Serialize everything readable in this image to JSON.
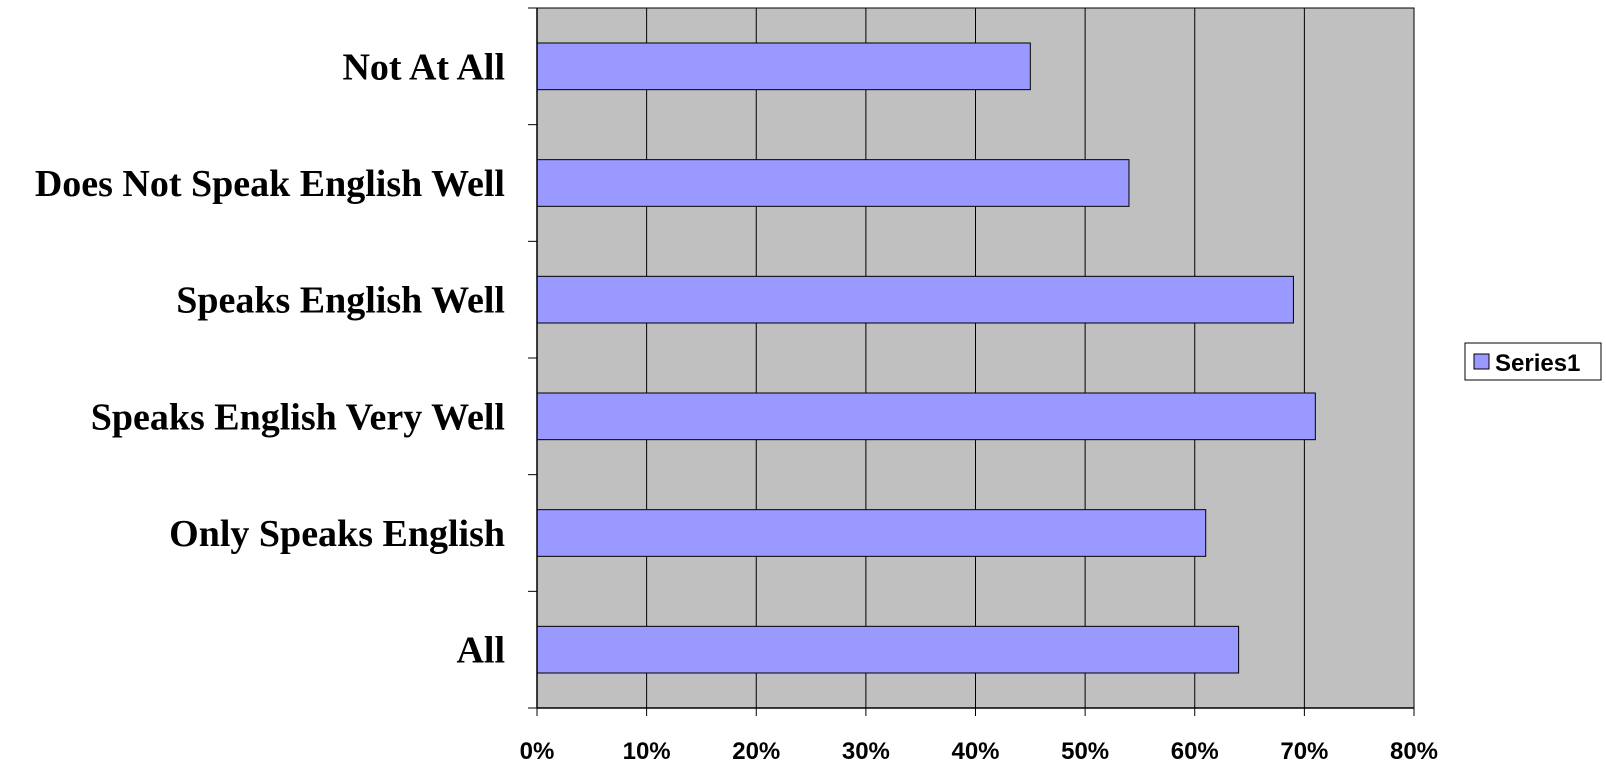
{
  "chart_data": {
    "type": "bar",
    "orientation": "horizontal",
    "categories": [
      "Not At All",
      "Does Not Speak English Well",
      "Speaks English Well",
      "Speaks English Very Well",
      "Only Speaks English",
      "All"
    ],
    "series": [
      {
        "name": "Series1",
        "values": [
          45,
          54,
          69,
          71,
          61,
          64
        ]
      }
    ],
    "xlim": [
      0,
      80
    ],
    "xticks": [
      0,
      10,
      20,
      30,
      40,
      50,
      60,
      70,
      80
    ],
    "tick_labels": [
      "0%",
      "10%",
      "20%",
      "30%",
      "40%",
      "50%",
      "60%",
      "70%",
      "80%"
    ],
    "grid": true,
    "legend": "right",
    "colors": {
      "bar": "#9999ff",
      "plot_bg": "#c0c0c0",
      "grid": "#000000"
    }
  }
}
